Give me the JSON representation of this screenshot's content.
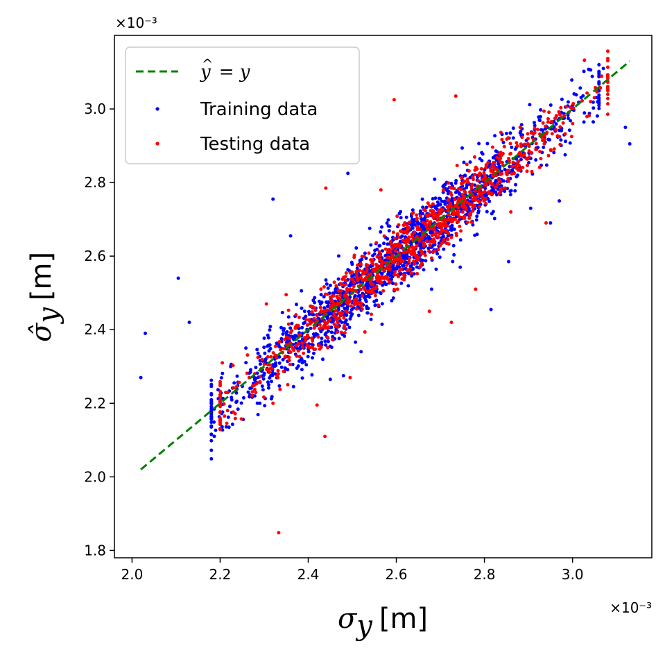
{
  "chart_data": {
    "type": "scatter",
    "xlabel": {
      "symbol": "σ",
      "subscript": "y",
      "unit": "[m]"
    },
    "ylabel": {
      "symbol": "σ̂",
      "subscript": "y",
      "unit": "[m]"
    },
    "x_offset_label": "×10⁻³",
    "y_offset_label": "×10⁻³",
    "xlim": [
      1.96,
      3.18
    ],
    "ylim": [
      1.78,
      3.2
    ],
    "xticks": [
      "2.0",
      "2.2",
      "2.4",
      "2.6",
      "2.8",
      "3.0"
    ],
    "yticks": [
      "1.8",
      "2.0",
      "2.2",
      "2.4",
      "2.6",
      "2.8",
      "3.0"
    ],
    "grid": false,
    "legend_position": "top-left",
    "reference_line": {
      "label": "ŷ = y",
      "label_parts": {
        "y": "y",
        "hat_mark": "^",
        "eq": " = "
      },
      "color": "#008000",
      "style": "dashed",
      "x": [
        2.02,
        3.13
      ],
      "y": [
        2.02,
        3.13
      ]
    },
    "series": [
      {
        "name": "Training data",
        "color": "#0000ff",
        "generated_count": 1600,
        "noise_sd": 0.045,
        "x_range": [
          2.18,
          3.06
        ],
        "outliers": [
          {
            "x": 2.02,
            "y": 2.27
          },
          {
            "x": 2.03,
            "y": 2.39
          },
          {
            "x": 2.105,
            "y": 2.54
          },
          {
            "x": 2.13,
            "y": 2.42
          },
          {
            "x": 2.32,
            "y": 2.755
          },
          {
            "x": 2.36,
            "y": 2.655
          },
          {
            "x": 2.49,
            "y": 2.825
          },
          {
            "x": 2.22,
            "y": 2.135
          },
          {
            "x": 2.29,
            "y": 2.2
          },
          {
            "x": 2.815,
            "y": 2.455
          },
          {
            "x": 2.745,
            "y": 2.57
          },
          {
            "x": 2.68,
            "y": 2.51
          },
          {
            "x": 2.855,
            "y": 2.585
          },
          {
            "x": 2.95,
            "y": 2.69
          },
          {
            "x": 3.12,
            "y": 2.95
          },
          {
            "x": 3.13,
            "y": 2.905
          },
          {
            "x": 3.07,
            "y": 3.11
          },
          {
            "x": 2.45,
            "y": 2.265
          },
          {
            "x": 2.48,
            "y": 2.275
          },
          {
            "x": 2.52,
            "y": 2.34
          },
          {
            "x": 2.905,
            "y": 2.73
          },
          {
            "x": 2.97,
            "y": 2.75
          }
        ]
      },
      {
        "name": "Testing data",
        "color": "#ff0000",
        "generated_count": 1000,
        "noise_sd": 0.04,
        "x_range": [
          2.2,
          3.08
        ],
        "outliers": [
          {
            "x": 2.333,
            "y": 1.848
          },
          {
            "x": 2.438,
            "y": 2.11
          },
          {
            "x": 2.42,
            "y": 2.195
          },
          {
            "x": 2.32,
            "y": 2.2
          },
          {
            "x": 2.21,
            "y": 2.165
          },
          {
            "x": 2.44,
            "y": 2.785
          },
          {
            "x": 2.595,
            "y": 3.025
          },
          {
            "x": 2.725,
            "y": 2.42
          },
          {
            "x": 2.675,
            "y": 2.45
          },
          {
            "x": 2.735,
            "y": 3.035
          },
          {
            "x": 2.35,
            "y": 2.495
          },
          {
            "x": 2.305,
            "y": 2.47
          },
          {
            "x": 3.08,
            "y": 3.04
          },
          {
            "x": 2.94,
            "y": 2.69
          },
          {
            "x": 2.205,
            "y": 2.31
          },
          {
            "x": 2.78,
            "y": 2.51
          },
          {
            "x": 2.86,
            "y": 2.72
          },
          {
            "x": 2.565,
            "y": 2.78
          },
          {
            "x": 2.495,
            "y": 2.27
          }
        ]
      }
    ]
  }
}
